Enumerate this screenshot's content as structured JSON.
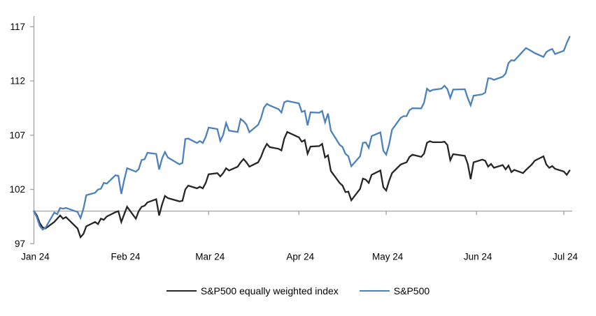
{
  "chart_data": {
    "type": "line",
    "title": "",
    "grid": false,
    "legend_position": "bottom",
    "background_color": "#ffffff",
    "axis_color": "#a2a2a2",
    "text_color": "#000000",
    "baseline_value": 100,
    "y_axis": {
      "min": 97,
      "max": 117,
      "ticks": [
        97,
        102,
        107,
        112,
        117
      ]
    },
    "x_axis": {
      "unit": "days_since_2024-01-01",
      "tick_labels": [
        "Jan 24",
        "Feb 24",
        "Mar 24",
        "Apr 24",
        "May 24",
        "Jun 24",
        "Jul 24"
      ],
      "tick_day_offsets": [
        0,
        31,
        60,
        91,
        121,
        152,
        182
      ]
    },
    "series": [
      {
        "name": "S&P500 equally weighted index",
        "color": "#262626",
        "day_offsets": [
          0,
          1,
          2,
          3,
          4,
          7,
          8,
          9,
          10,
          11,
          15,
          16,
          17,
          18,
          21,
          22,
          23,
          24,
          25,
          28,
          29,
          30,
          31,
          32,
          35,
          36,
          37,
          38,
          39,
          42,
          43,
          44,
          45,
          46,
          50,
          51,
          52,
          53,
          56,
          57,
          58,
          59,
          60,
          63,
          64,
          65,
          66,
          67,
          70,
          71,
          72,
          73,
          74,
          77,
          78,
          79,
          80,
          81,
          84,
          85,
          86,
          87,
          91,
          92,
          93,
          94,
          95,
          98,
          99,
          100,
          101,
          102,
          105,
          106,
          107,
          108,
          109,
          112,
          113,
          114,
          115,
          116,
          119,
          120,
          121,
          122,
          123,
          126,
          127,
          128,
          129,
          130,
          133,
          134,
          135,
          136,
          137,
          140,
          141,
          142,
          143,
          144,
          148,
          149,
          150,
          151,
          154,
          155,
          156,
          157,
          158,
          161,
          162,
          163,
          164,
          165,
          168,
          169,
          171,
          172,
          175,
          176,
          177,
          178,
          179,
          182,
          183,
          184
        ],
        "values": [
          100,
          99.6,
          98.9,
          98.5,
          98.4,
          99.0,
          99.3,
          99.6,
          99.3,
          99.45,
          98.4,
          97.6,
          97.9,
          98.6,
          99.0,
          98.8,
          99.3,
          99.2,
          99.5,
          99.9,
          100.0,
          99.0,
          99.7,
          100.4,
          99.3,
          100.0,
          100.4,
          100.5,
          100.8,
          101.1,
          99.6,
          100.6,
          101.4,
          101.2,
          100.9,
          100.95,
          102.0,
          102.35,
          102.1,
          102.25,
          102.1,
          102.6,
          103.4,
          103.5,
          103.2,
          103.5,
          103.95,
          103.75,
          104.1,
          104.5,
          104.8,
          104.5,
          104.1,
          104.5,
          105.0,
          105.7,
          106.2,
          105.9,
          105.75,
          105.6,
          106.7,
          107.3,
          106.8,
          106.4,
          106.55,
          105.3,
          105.95,
          106.0,
          106.2,
          104.95,
          105.15,
          103.7,
          102.6,
          102.35,
          101.75,
          101.8,
          101.0,
          102.05,
          103.0,
          102.9,
          102.6,
          103.35,
          103.75,
          102.2,
          101.9,
          102.8,
          103.5,
          104.3,
          104.4,
          104.5,
          105.0,
          105.2,
          105.0,
          105.3,
          106.3,
          106.45,
          106.35,
          106.35,
          106.4,
          106.1,
          104.7,
          105.25,
          105.1,
          104.35,
          102.95,
          104.5,
          104.75,
          104.65,
          104.1,
          104.35,
          104.0,
          104.25,
          103.85,
          104.2,
          103.6,
          103.8,
          103.5,
          103.8,
          104.3,
          104.65,
          105.05,
          104.3,
          104.0,
          104.15,
          103.9,
          103.65,
          103.35,
          103.75
        ]
      },
      {
        "name": "S&P500",
        "color": "#4d81bc",
        "day_offsets": [
          0,
          1,
          2,
          3,
          4,
          7,
          8,
          9,
          10,
          11,
          15,
          16,
          17,
          18,
          21,
          22,
          23,
          24,
          25,
          28,
          29,
          30,
          31,
          32,
          35,
          36,
          37,
          38,
          39,
          42,
          43,
          44,
          45,
          46,
          50,
          51,
          52,
          53,
          56,
          57,
          58,
          59,
          60,
          63,
          64,
          65,
          66,
          67,
          70,
          71,
          72,
          73,
          74,
          77,
          78,
          79,
          80,
          81,
          84,
          85,
          86,
          87,
          91,
          92,
          93,
          94,
          95,
          98,
          99,
          100,
          101,
          102,
          105,
          106,
          107,
          108,
          109,
          112,
          113,
          114,
          115,
          116,
          119,
          120,
          121,
          122,
          123,
          126,
          127,
          128,
          129,
          130,
          133,
          134,
          135,
          136,
          137,
          140,
          141,
          142,
          143,
          144,
          148,
          149,
          150,
          151,
          154,
          155,
          156,
          157,
          158,
          161,
          162,
          163,
          164,
          165,
          168,
          169,
          171,
          172,
          175,
          176,
          177,
          178,
          179,
          182,
          183,
          184
        ],
        "values": [
          100,
          99.43,
          98.64,
          98.3,
          98.48,
          99.87,
          99.72,
          100.29,
          100.22,
          100.29,
          99.92,
          99.36,
          100.23,
          101.47,
          101.69,
          101.99,
          102.07,
          102.61,
          102.54,
          103.31,
          103.25,
          101.59,
          102.86,
          103.96,
          103.63,
          103.87,
          104.72,
          104.78,
          105.38,
          105.28,
          103.84,
          104.84,
          105.45,
          104.94,
          104.31,
          104.44,
          106.65,
          106.69,
          106.28,
          106.46,
          106.29,
          106.84,
          107.7,
          107.57,
          106.47,
          107.02,
          108.13,
          107.42,
          107.3,
          108.5,
          108.29,
          107.98,
          107.28,
          107.96,
          108.57,
          109.53,
          109.89,
          109.74,
          109.4,
          109.09,
          110.04,
          110.16,
          109.94,
          109.14,
          109.26,
          107.91,
          109.11,
          109.07,
          109.23,
          108.19,
          109.0,
          107.41,
          106.12,
          105.9,
          105.29,
          105.06,
          104.14,
          105.05,
          106.3,
          106.33,
          105.84,
          106.92,
          107.26,
          105.57,
          105.21,
          106.17,
          107.5,
          108.61,
          108.76,
          108.76,
          109.31,
          109.49,
          109.47,
          110.0,
          111.29,
          111.05,
          111.18,
          111.29,
          111.56,
          111.26,
          110.44,
          111.21,
          111.24,
          110.42,
          109.76,
          110.64,
          110.77,
          110.93,
          112.25,
          112.23,
          112.1,
          112.39,
          112.69,
          113.65,
          113.92,
          113.87,
          114.75,
          115.04,
          114.74,
          114.57,
          114.22,
          114.66,
          114.84,
          114.95,
          114.48,
          114.79,
          115.5,
          116.08
        ]
      }
    ],
    "legend": [
      "S&P500 equally weighted index",
      "S&P500"
    ]
  }
}
